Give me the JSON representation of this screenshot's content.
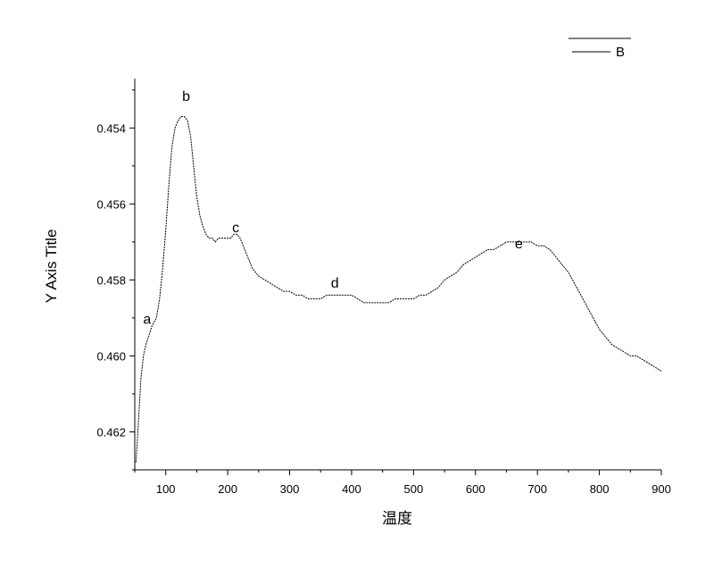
{
  "chart_data": {
    "type": "line",
    "title": "",
    "xlabel": "温度",
    "ylabel": "Y Axis Title",
    "xlim": [
      50,
      900
    ],
    "ylim": [
      0.463,
      0.4527
    ],
    "y_inverted": true,
    "grid": false,
    "legend_position": "top-right",
    "x_ticks": [
      100,
      200,
      300,
      400,
      500,
      600,
      700,
      800,
      900
    ],
    "x_tick_labels": [
      "100",
      "200",
      "300",
      "400",
      "500",
      "600",
      "700",
      "800",
      "900"
    ],
    "y_ticks": [
      0.454,
      0.456,
      0.458,
      0.46,
      0.462
    ],
    "y_tick_labels": [
      "0.454",
      "0.456",
      "0.458",
      "0.460",
      "0.462"
    ],
    "series": [
      {
        "name": "B",
        "color": "#000000",
        "x": [
          52,
          56,
          60,
          64,
          68,
          72,
          78,
          85,
          90,
          95,
          100,
          105,
          110,
          115,
          120,
          125,
          130,
          135,
          140,
          145,
          150,
          155,
          160,
          165,
          170,
          175,
          180,
          185,
          190,
          195,
          200,
          205,
          210,
          215,
          220,
          225,
          230,
          235,
          240,
          245,
          250,
          260,
          270,
          280,
          290,
          300,
          310,
          320,
          330,
          340,
          350,
          360,
          370,
          380,
          390,
          400,
          410,
          420,
          430,
          440,
          450,
          460,
          470,
          480,
          490,
          500,
          510,
          520,
          530,
          540,
          550,
          560,
          570,
          580,
          590,
          600,
          610,
          620,
          630,
          640,
          650,
          660,
          670,
          680,
          690,
          700,
          710,
          720,
          730,
          740,
          750,
          760,
          770,
          780,
          790,
          800,
          810,
          820,
          830,
          840,
          850,
          860,
          870,
          880,
          890,
          900
        ],
        "y": [
          0.4628,
          0.4617,
          0.4606,
          0.46,
          0.4597,
          0.4595,
          0.4592,
          0.459,
          0.4585,
          0.4577,
          0.4567,
          0.4555,
          0.4545,
          0.454,
          0.4538,
          0.4537,
          0.4537,
          0.4538,
          0.4542,
          0.455,
          0.4558,
          0.4563,
          0.4566,
          0.4568,
          0.4569,
          0.4569,
          0.457,
          0.4569,
          0.4569,
          0.4569,
          0.4569,
          0.4569,
          0.4568,
          0.4568,
          0.4569,
          0.4571,
          0.4573,
          0.4575,
          0.4577,
          0.4578,
          0.4579,
          0.458,
          0.4581,
          0.4582,
          0.4583,
          0.4583,
          0.4584,
          0.4584,
          0.4585,
          0.4585,
          0.4585,
          0.4584,
          0.4584,
          0.4584,
          0.4584,
          0.4584,
          0.4585,
          0.4586,
          0.4586,
          0.4586,
          0.4586,
          0.4586,
          0.4585,
          0.4585,
          0.4585,
          0.4585,
          0.4584,
          0.4584,
          0.4583,
          0.4582,
          0.458,
          0.4579,
          0.4578,
          0.4576,
          0.4575,
          0.4574,
          0.4573,
          0.4572,
          0.4572,
          0.4571,
          0.457,
          0.457,
          0.457,
          0.457,
          0.457,
          0.4571,
          0.4571,
          0.4572,
          0.4574,
          0.4576,
          0.4578,
          0.4581,
          0.4584,
          0.4587,
          0.459,
          0.4593,
          0.4595,
          0.4597,
          0.4598,
          0.4599,
          0.46,
          0.46,
          0.4601,
          0.4602,
          0.4603,
          0.4604
        ]
      }
    ],
    "annotations": [
      {
        "text": "a",
        "x": 70,
        "y": 0.45915
      },
      {
        "text": "b",
        "x": 133,
        "y": 0.45329
      },
      {
        "text": "c",
        "x": 213,
        "y": 0.45675
      },
      {
        "text": "d",
        "x": 373,
        "y": 0.4582
      },
      {
        "text": "e",
        "x": 670,
        "y": 0.45717
      }
    ]
  }
}
